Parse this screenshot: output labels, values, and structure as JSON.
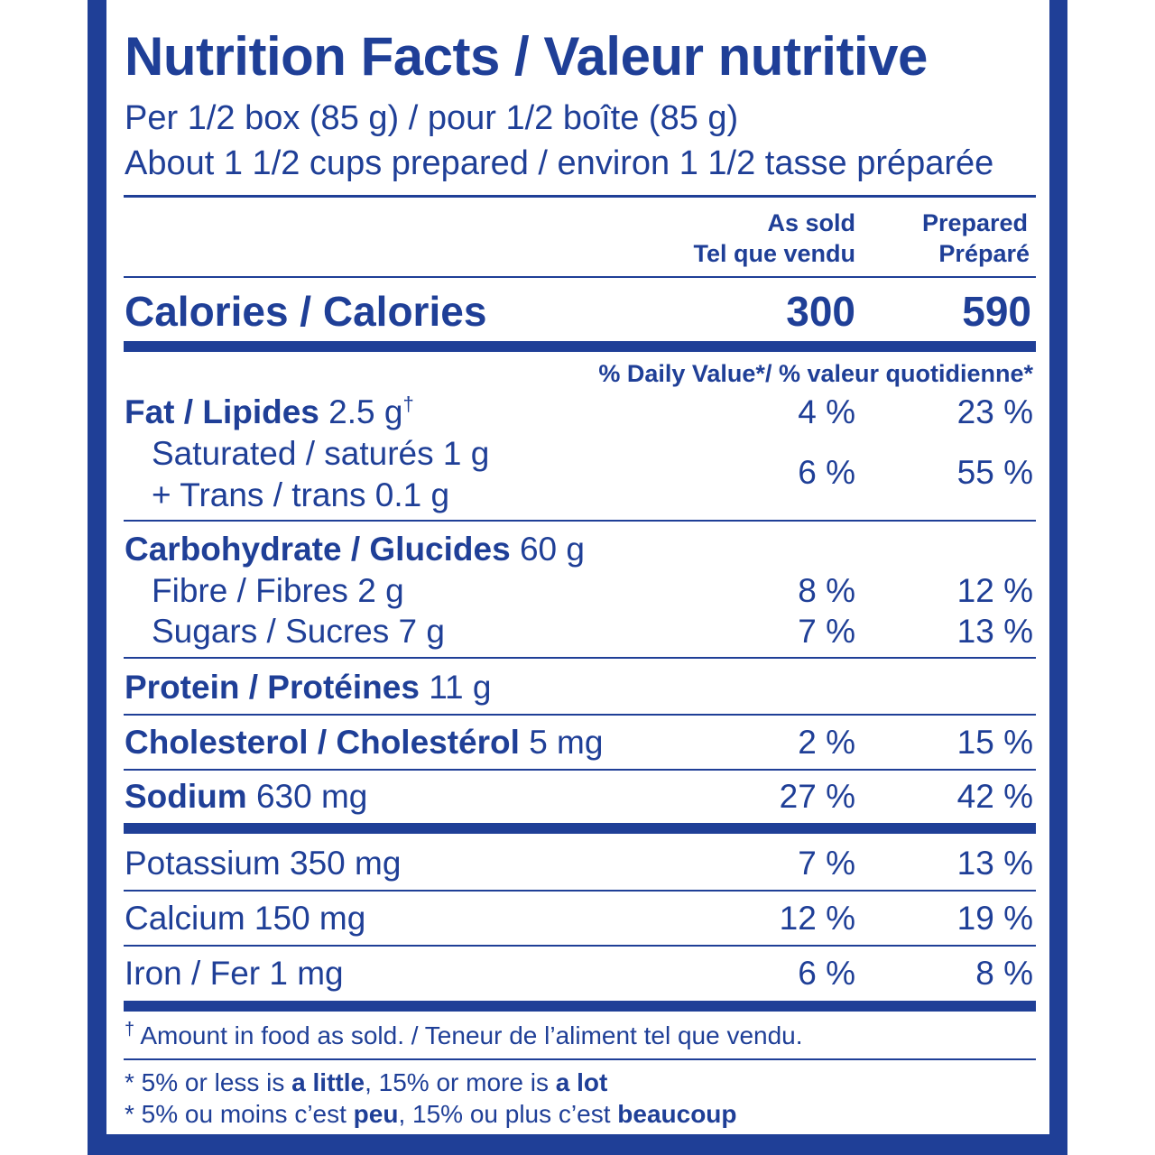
{
  "title": "Nutrition Facts / Valeur nutritive",
  "serving_line_1": "Per 1/2 box (85 g) / pour 1/2 boîte (85 g)",
  "serving_line_2": "About 1 1/2 cups prepared / environ 1 1/2 tasse préparée",
  "columns": {
    "as_sold_en": "As sold",
    "as_sold_fr": "Tel que vendu",
    "prepared_en": "Prepared",
    "prepared_fr": "Préparé"
  },
  "calories": {
    "label": "Calories / Calories",
    "as_sold": "300",
    "prepared": "590"
  },
  "daily_value_header": "% Daily Value*/ % valeur quotidienne*",
  "fat": {
    "label": "Fat / Lipides",
    "amount": "2.5 g",
    "mark": "†",
    "as_sold": "4 %",
    "prepared": "23 %"
  },
  "saturated": {
    "label": "Saturated / saturés 1 g"
  },
  "trans": {
    "label": "+ Trans / trans 0.1 g"
  },
  "sat_trans_dv": {
    "as_sold": "6 %",
    "prepared": "55 %"
  },
  "carbohydrate": {
    "label": "Carbohydrate / Glucides",
    "amount": "60 g"
  },
  "fibre": {
    "label": "Fibre / Fibres 2 g",
    "as_sold": "8 %",
    "prepared": "12 %"
  },
  "sugars": {
    "label": "Sugars / Sucres 7 g",
    "as_sold": "7 %",
    "prepared": "13 %"
  },
  "protein": {
    "label": "Protein / Protéines",
    "amount": "11 g"
  },
  "cholesterol": {
    "label": "Cholesterol / Cholestérol",
    "amount": "5 mg",
    "as_sold": "2 %",
    "prepared": "15 %"
  },
  "sodium": {
    "label": "Sodium",
    "amount": "630 mg",
    "as_sold": "27 %",
    "prepared": "42 %"
  },
  "potassium": {
    "label": "Potassium 350 mg",
    "as_sold": "7 %",
    "prepared": "13 %"
  },
  "calcium": {
    "label": "Calcium 150 mg",
    "as_sold": "12 %",
    "prepared": "19 %"
  },
  "iron": {
    "label": "Iron / Fer 1 mg",
    "as_sold": "6 %",
    "prepared": "8 %"
  },
  "footnote_mark": "†",
  "footnote": "Amount in food as sold. / Teneur de l’aliment tel que vendu.",
  "legend_en": {
    "pre": "* 5% or less is ",
    "little": "a little",
    "mid": ", 15% or more is ",
    "lot": "a lot"
  },
  "legend_fr": {
    "pre": "* 5% ou moins c’est ",
    "little": "peu",
    "mid": ", 15% ou plus c’est ",
    "lot": "beaucoup"
  },
  "colors": {
    "ink": "#1f3f97",
    "background": "#ffffff"
  }
}
